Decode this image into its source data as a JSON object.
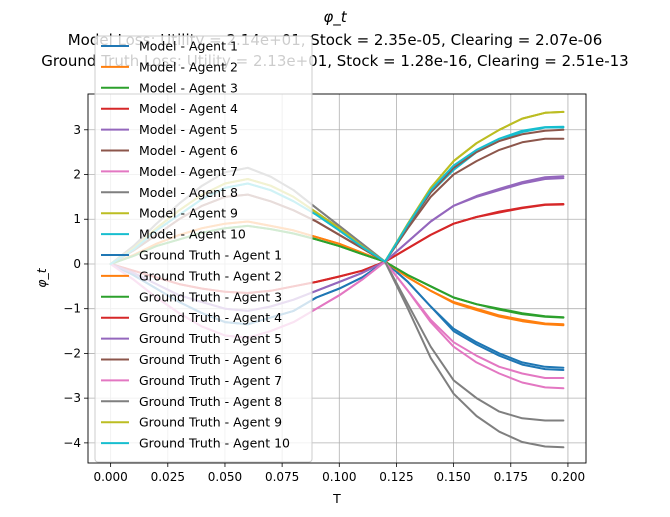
{
  "chart_data": {
    "type": "line",
    "title": "φ_t",
    "subtitle_lines": [
      "Model Loss: Utility = 2.14e+01, Stock = 2.35e-05, Clearing = 2.07e-06",
      "Ground Truth Loss: Utility = 2.13e+01, Stock = 1.28e-16, Clearing = 2.51e-13"
    ],
    "xlabel": "T",
    "ylabel": "φ_t",
    "xlim": [
      -0.0099,
      0.2079
    ],
    "ylim": [
      -4.45,
      3.8
    ],
    "xticks": [
      0.0,
      0.025,
      0.05,
      0.075,
      0.1,
      0.125,
      0.15,
      0.175,
      0.2
    ],
    "xtick_labels": [
      "0.000",
      "0.025",
      "0.050",
      "0.075",
      "0.100",
      "0.125",
      "0.150",
      "0.175",
      "0.200"
    ],
    "yticks": [
      -4,
      -3,
      -2,
      -1,
      0,
      1,
      2,
      3
    ],
    "ytick_labels": [
      "−4",
      "−3",
      "−2",
      "−1",
      "0",
      "1",
      "2",
      "3"
    ],
    "grid": true,
    "legend_position": "upper-left",
    "x": [
      0.0,
      0.01,
      0.02,
      0.03,
      0.04,
      0.05,
      0.06,
      0.07,
      0.08,
      0.09,
      0.1,
      0.11,
      0.12,
      0.13,
      0.14,
      0.15,
      0.16,
      0.17,
      0.18,
      0.19,
      0.198
    ],
    "series": [
      {
        "name": "Model - Agent 1",
        "color": "#1f77b4",
        "values": [
          0.0,
          -0.25,
          -0.55,
          -0.85,
          -1.1,
          -1.3,
          -1.35,
          -1.2,
          -1.05,
          -0.75,
          -0.55,
          -0.3,
          0.05,
          -0.4,
          -0.95,
          -1.45,
          -1.75,
          -2.0,
          -2.2,
          -2.3,
          -2.32
        ]
      },
      {
        "name": "Model - Agent 2",
        "color": "#ff7f0e",
        "values": [
          0.0,
          0.2,
          0.45,
          0.65,
          0.8,
          0.9,
          0.95,
          0.85,
          0.75,
          0.6,
          0.45,
          0.25,
          0.05,
          -0.3,
          -0.6,
          -0.85,
          -1.0,
          -1.15,
          -1.25,
          -1.33,
          -1.35
        ]
      },
      {
        "name": "Model - Agent 3",
        "color": "#2ca02c",
        "values": [
          0.0,
          0.18,
          0.4,
          0.55,
          0.7,
          0.8,
          0.85,
          0.78,
          0.68,
          0.55,
          0.4,
          0.22,
          0.05,
          -0.25,
          -0.5,
          -0.75,
          -0.9,
          -1.0,
          -1.1,
          -1.17,
          -1.19
        ]
      },
      {
        "name": "Model - Agent 4",
        "color": "#d62728",
        "values": [
          0.0,
          -0.15,
          -0.3,
          -0.45,
          -0.55,
          -0.62,
          -0.65,
          -0.6,
          -0.5,
          -0.4,
          -0.28,
          -0.15,
          0.05,
          0.35,
          0.65,
          0.9,
          1.05,
          1.15,
          1.25,
          1.32,
          1.33
        ]
      },
      {
        "name": "Model - Agent 5",
        "color": "#9467bd",
        "values": [
          0.0,
          -0.2,
          -0.45,
          -0.7,
          -0.85,
          -1.0,
          -1.05,
          -0.95,
          -0.8,
          -0.6,
          -0.4,
          -0.2,
          0.05,
          0.5,
          0.95,
          1.3,
          1.5,
          1.65,
          1.8,
          1.9,
          1.92
        ]
      },
      {
        "name": "Model - Agent 6",
        "color": "#8c564b",
        "values": [
          0.0,
          0.3,
          0.65,
          1.0,
          1.3,
          1.5,
          1.55,
          1.4,
          1.2,
          0.95,
          0.65,
          0.35,
          0.05,
          0.8,
          1.5,
          2.0,
          2.3,
          2.55,
          2.72,
          2.8,
          2.8
        ]
      },
      {
        "name": "Model - Agent 7",
        "color": "#e377c2",
        "values": [
          0.0,
          -0.35,
          -0.75,
          -1.1,
          -1.4,
          -1.6,
          -1.65,
          -1.5,
          -1.3,
          -1.0,
          -0.7,
          -0.35,
          0.05,
          -0.6,
          -1.25,
          -1.75,
          -2.05,
          -2.3,
          -2.45,
          -2.55,
          -2.55
        ]
      },
      {
        "name": "Model - Agent 8",
        "color": "#7f7f7f",
        "values": [
          0.0,
          0.4,
          0.9,
          1.35,
          1.75,
          2.05,
          2.15,
          1.95,
          1.65,
          1.25,
          0.85,
          0.45,
          0.05,
          -0.9,
          -1.85,
          -2.6,
          -3.0,
          -3.3,
          -3.45,
          -3.5,
          -3.5
        ]
      },
      {
        "name": "Model - Agent 9",
        "color": "#bcbd22",
        "values": [
          0.0,
          0.35,
          0.8,
          1.2,
          1.55,
          1.8,
          1.9,
          1.75,
          1.5,
          1.15,
          0.8,
          0.4,
          0.05,
          0.9,
          1.7,
          2.3,
          2.7,
          3.0,
          3.25,
          3.38,
          3.4
        ]
      },
      {
        "name": "Model - Agent 10",
        "color": "#17becf",
        "values": [
          0.0,
          0.32,
          0.75,
          1.1,
          1.45,
          1.7,
          1.8,
          1.65,
          1.4,
          1.1,
          0.75,
          0.38,
          0.05,
          0.85,
          1.6,
          2.1,
          2.5,
          2.75,
          2.95,
          3.05,
          3.05
        ]
      },
      {
        "name": "Ground Truth - Agent 1",
        "color": "#1f77b4",
        "values": [
          0.0,
          -0.25,
          -0.55,
          -0.85,
          -1.1,
          -1.3,
          -1.35,
          -1.2,
          -1.05,
          -0.75,
          -0.55,
          -0.3,
          0.05,
          -0.4,
          -0.95,
          -1.5,
          -1.8,
          -2.05,
          -2.25,
          -2.35,
          -2.37
        ]
      },
      {
        "name": "Ground Truth - Agent 2",
        "color": "#ff7f0e",
        "values": [
          0.0,
          0.2,
          0.45,
          0.65,
          0.8,
          0.9,
          0.95,
          0.85,
          0.75,
          0.6,
          0.45,
          0.25,
          0.05,
          -0.3,
          -0.6,
          -0.87,
          -1.03,
          -1.18,
          -1.28,
          -1.35,
          -1.37
        ]
      },
      {
        "name": "Ground Truth - Agent 3",
        "color": "#2ca02c",
        "values": [
          0.0,
          0.18,
          0.4,
          0.55,
          0.7,
          0.8,
          0.85,
          0.78,
          0.68,
          0.55,
          0.4,
          0.22,
          0.05,
          -0.25,
          -0.5,
          -0.75,
          -0.9,
          -1.02,
          -1.12,
          -1.18,
          -1.2
        ]
      },
      {
        "name": "Ground Truth - Agent 4",
        "color": "#d62728",
        "values": [
          0.0,
          -0.15,
          -0.3,
          -0.45,
          -0.55,
          -0.62,
          -0.65,
          -0.6,
          -0.5,
          -0.4,
          -0.28,
          -0.15,
          0.05,
          0.35,
          0.65,
          0.9,
          1.05,
          1.17,
          1.26,
          1.33,
          1.34
        ]
      },
      {
        "name": "Ground Truth - Agent 5",
        "color": "#9467bd",
        "values": [
          0.0,
          -0.2,
          -0.45,
          -0.7,
          -0.85,
          -1.0,
          -1.05,
          -0.95,
          -0.8,
          -0.6,
          -0.4,
          -0.2,
          0.05,
          0.5,
          0.95,
          1.3,
          1.52,
          1.68,
          1.83,
          1.94,
          1.96
        ]
      },
      {
        "name": "Ground Truth - Agent 6",
        "color": "#8c564b",
        "values": [
          0.0,
          0.3,
          0.65,
          1.0,
          1.3,
          1.5,
          1.55,
          1.4,
          1.2,
          0.95,
          0.65,
          0.35,
          0.05,
          0.85,
          1.6,
          2.15,
          2.5,
          2.75,
          2.9,
          2.98,
          3.0
        ]
      },
      {
        "name": "Ground Truth - Agent 7",
        "color": "#e377c2",
        "values": [
          0.0,
          -0.35,
          -0.75,
          -1.1,
          -1.4,
          -1.6,
          -1.65,
          -1.5,
          -1.3,
          -1.0,
          -0.7,
          -0.35,
          0.05,
          -0.6,
          -1.3,
          -1.85,
          -2.2,
          -2.45,
          -2.65,
          -2.76,
          -2.78
        ]
      },
      {
        "name": "Ground Truth - Agent 8",
        "color": "#7f7f7f",
        "values": [
          0.0,
          0.4,
          0.9,
          1.35,
          1.75,
          2.05,
          2.15,
          1.95,
          1.65,
          1.25,
          0.85,
          0.45,
          0.05,
          -1.0,
          -2.1,
          -2.9,
          -3.4,
          -3.75,
          -3.98,
          -4.08,
          -4.1
        ]
      },
      {
        "name": "Ground Truth - Agent 9",
        "color": "#bcbd22",
        "values": [
          0.0,
          0.35,
          0.8,
          1.2,
          1.55,
          1.8,
          1.9,
          1.75,
          1.5,
          1.15,
          0.8,
          0.4,
          0.05,
          0.9,
          1.7,
          2.3,
          2.7,
          3.0,
          3.25,
          3.38,
          3.4
        ]
      },
      {
        "name": "Ground Truth - Agent 10",
        "color": "#17becf",
        "values": [
          0.0,
          0.32,
          0.75,
          1.1,
          1.45,
          1.7,
          1.8,
          1.65,
          1.4,
          1.1,
          0.75,
          0.38,
          0.05,
          0.88,
          1.65,
          2.2,
          2.55,
          2.8,
          2.98,
          3.06,
          3.07
        ]
      }
    ]
  }
}
